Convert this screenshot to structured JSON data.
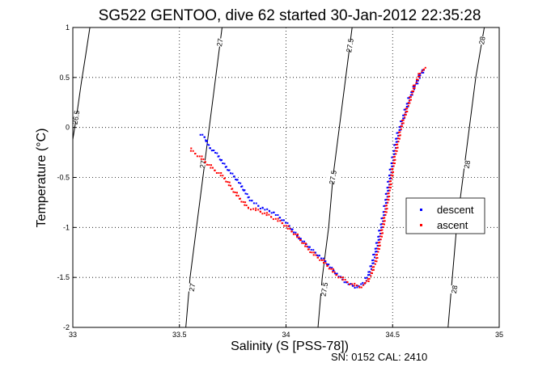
{
  "chart_data": {
    "type": "scatter",
    "title": "SG522 GENTOO, dive 62 started 30-Jan-2012 22:35:28",
    "xlabel": "Salinity (S [PSS-78])",
    "ylabel": "Temperature (°C)",
    "footer": "SN: 0152  CAL: 2410",
    "xlim": [
      33,
      35
    ],
    "ylim": [
      -2,
      1
    ],
    "xticks": [
      "33",
      "33.5",
      "34",
      "34.5",
      "35"
    ],
    "yticks": [
      "-2",
      "-1.5",
      "-1",
      "-0.5",
      "0",
      "0.5",
      "1"
    ],
    "grid": true,
    "legend_position": "right",
    "series": [
      {
        "name": "descent",
        "color": "#0000ff",
        "path": [
          [
            33.6,
            -0.07
          ],
          [
            33.62,
            -0.1
          ],
          [
            33.64,
            -0.2
          ],
          [
            33.67,
            -0.25
          ],
          [
            33.72,
            -0.4
          ],
          [
            33.78,
            -0.55
          ],
          [
            33.83,
            -0.72
          ],
          [
            33.88,
            -0.8
          ],
          [
            33.94,
            -0.85
          ],
          [
            34.0,
            -0.95
          ],
          [
            34.06,
            -1.1
          ],
          [
            34.12,
            -1.22
          ],
          [
            34.18,
            -1.33
          ],
          [
            34.23,
            -1.45
          ],
          [
            34.28,
            -1.55
          ],
          [
            34.33,
            -1.6
          ],
          [
            34.37,
            -1.55
          ],
          [
            34.4,
            -1.4
          ],
          [
            34.43,
            -1.15
          ],
          [
            34.46,
            -0.85
          ],
          [
            34.49,
            -0.45
          ],
          [
            34.52,
            -0.1
          ],
          [
            34.55,
            0.1
          ],
          [
            34.58,
            0.3
          ],
          [
            34.62,
            0.48
          ],
          [
            34.65,
            0.6
          ]
        ]
      },
      {
        "name": "ascent",
        "color": "#ff0000",
        "path": [
          [
            33.55,
            -0.22
          ],
          [
            33.6,
            -0.3
          ],
          [
            33.65,
            -0.4
          ],
          [
            33.71,
            -0.5
          ],
          [
            33.76,
            -0.65
          ],
          [
            33.82,
            -0.8
          ],
          [
            33.87,
            -0.83
          ],
          [
            33.92,
            -0.88
          ],
          [
            33.98,
            -0.95
          ],
          [
            34.05,
            -1.08
          ],
          [
            34.12,
            -1.25
          ],
          [
            34.18,
            -1.35
          ],
          [
            34.24,
            -1.48
          ],
          [
            34.3,
            -1.56
          ],
          [
            34.35,
            -1.6
          ],
          [
            34.39,
            -1.52
          ],
          [
            34.42,
            -1.35
          ],
          [
            34.45,
            -1.05
          ],
          [
            34.48,
            -0.7
          ],
          [
            34.51,
            -0.3
          ],
          [
            34.54,
            0.0
          ],
          [
            34.57,
            0.2
          ],
          [
            34.6,
            0.4
          ],
          [
            34.63,
            0.55
          ],
          [
            34.66,
            0.6
          ]
        ]
      }
    ],
    "contours": [
      {
        "label": "26.5",
        "path": [
          [
            33.0,
            -0.12
          ],
          [
            33.02,
            0.15
          ],
          [
            33.04,
            0.45
          ],
          [
            33.06,
            0.72
          ],
          [
            33.08,
            1.0
          ]
        ]
      },
      {
        "label": "27",
        "path": [
          [
            33.53,
            -2.0
          ],
          [
            33.55,
            -1.5
          ],
          [
            33.58,
            -1.0
          ],
          [
            33.61,
            -0.5
          ],
          [
            33.64,
            0.0
          ],
          [
            33.67,
            0.5
          ],
          [
            33.7,
            1.0
          ]
        ]
      },
      {
        "label": "27.5",
        "path": [
          [
            34.15,
            -2.0
          ],
          [
            34.17,
            -1.5
          ],
          [
            34.2,
            -1.0
          ],
          [
            34.22,
            -0.5
          ],
          [
            34.25,
            0.0
          ],
          [
            34.28,
            0.5
          ],
          [
            34.31,
            1.0
          ]
        ]
      },
      {
        "label": "28",
        "path": [
          [
            34.76,
            -2.0
          ],
          [
            34.78,
            -1.5
          ],
          [
            34.8,
            -1.0
          ],
          [
            34.83,
            -0.5
          ],
          [
            34.86,
            0.0
          ],
          [
            34.89,
            0.5
          ],
          [
            34.93,
            1.0
          ]
        ]
      }
    ],
    "contour_labels": [
      {
        "text": "26.5",
        "x": 33.015,
        "y": 0.1
      },
      {
        "text": "27",
        "x": 33.69,
        "y": 0.85
      },
      {
        "text": "27",
        "x": 33.61,
        "y": -0.37
      },
      {
        "text": "27",
        "x": 33.56,
        "y": -1.6
      },
      {
        "text": "27.5",
        "x": 34.3,
        "y": 0.82
      },
      {
        "text": "27.5",
        "x": 34.22,
        "y": -0.5
      },
      {
        "text": "27.5",
        "x": 34.18,
        "y": -1.62
      },
      {
        "text": "28",
        "x": 34.92,
        "y": 0.87
      },
      {
        "text": "28",
        "x": 34.85,
        "y": -0.37
      },
      {
        "text": "28",
        "x": 34.79,
        "y": -1.62
      }
    ]
  }
}
